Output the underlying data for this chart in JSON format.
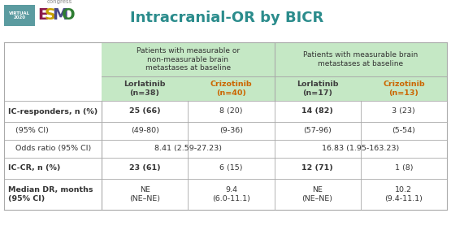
{
  "title": "Intracranial-OR by BICR",
  "title_color": "#2B8C8C",
  "title_fontsize": 13,
  "header_bg": "#C5E8C5",
  "table_border_color": "#AAAAAA",
  "lor_color": "#404040",
  "criz_color": "#CC6600",
  "col_groups": [
    "Patients with measurable or\nnon-measurable brain\nmetastases at baseline",
    "Patients with measurable brain\nmetastases at baseline"
  ],
  "col_headers": [
    {
      "text": "Lorlatinib\n(n=38)",
      "color": "#404040"
    },
    {
      "text": "Crizotinib\n(n=40)",
      "color": "#CC6600"
    },
    {
      "text": "Lorlatinib\n(n=17)",
      "color": "#404040"
    },
    {
      "text": "Crizotinib\n(n=13)",
      "color": "#CC6600"
    }
  ],
  "rows": [
    {
      "label": "IC-responders, n (%)",
      "bold": true,
      "values": [
        "25 (66)",
        "8 (20)",
        "14 (82)",
        "3 (23)"
      ],
      "bold_values": [
        true,
        false,
        true,
        false
      ],
      "span": false
    },
    {
      "label": "   (95% CI)",
      "bold": false,
      "values": [
        "(49-80)",
        "(9-36)",
        "(57-96)",
        "(5-54)"
      ],
      "bold_values": [
        false,
        false,
        false,
        false
      ],
      "span": false
    },
    {
      "label": "   Odds ratio (95% CI)",
      "bold": false,
      "values": [
        "8.41 (2.59-27.23)",
        "",
        "16.83 (1.95-163.23)",
        ""
      ],
      "bold_values": [
        false,
        false,
        false,
        false
      ],
      "span": true
    },
    {
      "label": "IC-CR, n (%)",
      "bold": true,
      "values": [
        "23 (61)",
        "6 (15)",
        "12 (71)",
        "1 (8)"
      ],
      "bold_values": [
        true,
        false,
        true,
        false
      ],
      "span": false
    },
    {
      "label": "Median DR, months\n(95% CI)",
      "bold": true,
      "values": [
        "NE\n(NE–NE)",
        "9.4\n(6.0-11.1)",
        "NE\n(NE–NE)",
        "10.2\n(9.4-11.1)"
      ],
      "bold_values": [
        false,
        false,
        false,
        false
      ],
      "span": false
    }
  ],
  "esmo_colors": {
    "virtual_bg": "#5B9BA0",
    "esmo_e": "#8B1A4A",
    "esmo_s": "#C8A000",
    "esmo_m": "#4A4A8A",
    "esmo_o": "#2E7D32",
    "congress_color": "#888888"
  },
  "fig_w": 5.55,
  "fig_h": 3.05,
  "dpi": 100
}
